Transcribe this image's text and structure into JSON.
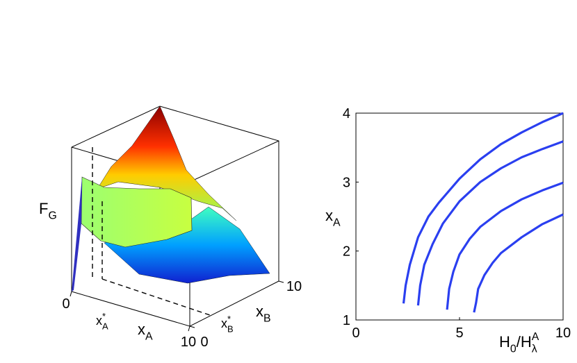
{
  "chart_data": [
    {
      "type": "surface",
      "zlabel": [
        {
          "text": "F",
          "pos": "base"
        },
        {
          "text": "G",
          "pos": "sub"
        }
      ],
      "xlabel": [
        {
          "text": "x",
          "pos": "base"
        },
        {
          "text": "A",
          "pos": "sub"
        }
      ],
      "ylabel": [
        {
          "text": "x",
          "pos": "base"
        },
        {
          "text": "B",
          "pos": "sub"
        }
      ],
      "xlim": [
        0,
        10
      ],
      "xticks": [
        0,
        10
      ],
      "ylim": [
        0,
        10
      ],
      "yticks": [
        0,
        10
      ],
      "annotations": [
        [
          {
            "text": "x",
            "pos": "base"
          },
          {
            "text": "*",
            "pos": "sup"
          },
          {
            "text": "A",
            "pos": "sub"
          }
        ],
        [
          {
            "text": "x",
            "pos": "base"
          },
          {
            "text": "*",
            "pos": "sup"
          },
          {
            "text": "B",
            "pos": "sub"
          }
        ]
      ]
    },
    {
      "type": "line",
      "xlabel": [
        {
          "text": "H",
          "pos": "base"
        },
        {
          "text": "0",
          "pos": "sub"
        },
        {
          "text": "/H",
          "pos": "base"
        },
        {
          "text": "A",
          "pos": "sup"
        },
        {
          "text": "λ",
          "pos": "sub"
        }
      ],
      "ylabel": [
        {
          "text": "x",
          "pos": "base"
        },
        {
          "text": "A",
          "pos": "sub"
        }
      ],
      "xlim": [
        0,
        10
      ],
      "xticks": [
        0,
        5,
        10
      ],
      "ylim": [
        1,
        4
      ],
      "yticks": [
        1,
        2,
        3,
        4
      ],
      "series": [
        {
          "color": "#2a3ff0",
          "x": [
            2.3,
            2.4,
            2.6,
            3,
            3.5,
            4,
            5,
            6,
            7,
            8,
            9,
            10
          ],
          "values": [
            1.24,
            1.5,
            1.8,
            2.2,
            2.5,
            2.7,
            3.05,
            3.33,
            3.55,
            3.72,
            3.87,
            4.0
          ]
        },
        {
          "color": "#2a3ff0",
          "x": [
            3,
            3.1,
            3.3,
            3.7,
            4.2,
            5,
            6,
            7,
            8,
            9,
            10
          ],
          "values": [
            1.21,
            1.5,
            1.8,
            2.1,
            2.4,
            2.72,
            3.0,
            3.2,
            3.36,
            3.48,
            3.59
          ]
        },
        {
          "color": "#2a3ff0",
          "x": [
            4.4,
            4.5,
            4.7,
            5,
            5.5,
            6,
            7,
            8,
            9,
            10
          ],
          "values": [
            1.15,
            1.45,
            1.7,
            1.95,
            2.18,
            2.35,
            2.58,
            2.75,
            2.88,
            2.99
          ]
        },
        {
          "color": "#2a3ff0",
          "x": [
            5.7,
            5.8,
            5.9,
            6.2,
            6.6,
            7,
            8,
            9,
            10
          ],
          "values": [
            1.11,
            1.25,
            1.45,
            1.65,
            1.83,
            1.97,
            2.2,
            2.39,
            2.53
          ]
        }
      ]
    }
  ]
}
